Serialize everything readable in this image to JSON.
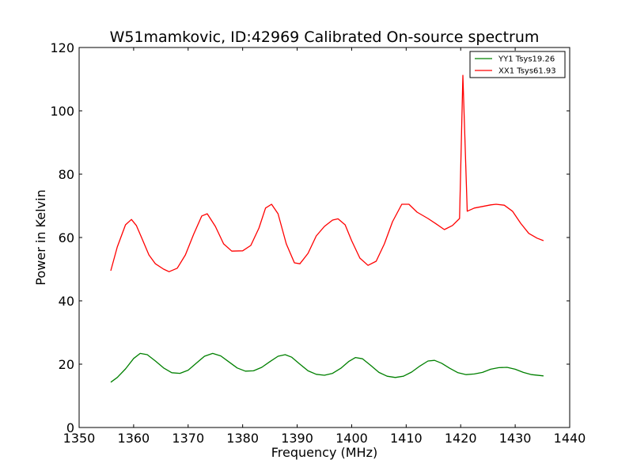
{
  "chart_data": {
    "type": "line",
    "title": "W51mamkovic, ID:42969 Calibrated On-source spectrum",
    "xlabel": "Frequency (MHz)",
    "ylabel": "Power in Kelvin",
    "xlim": [
      1350,
      1440
    ],
    "ylim": [
      0,
      120
    ],
    "xticks": [
      1350,
      1360,
      1370,
      1380,
      1390,
      1400,
      1410,
      1420,
      1430,
      1440
    ],
    "yticks": [
      0,
      20,
      40,
      60,
      80,
      100,
      120
    ],
    "grid": false,
    "legend_position": "top-right",
    "series": [
      {
        "name": "YY1 Tsys19.26",
        "color": "#008000",
        "x": [
          1355.8,
          1357,
          1358.5,
          1360,
          1361.2,
          1362.5,
          1364,
          1365.5,
          1367,
          1368.5,
          1370,
          1371.5,
          1373,
          1374.5,
          1376,
          1377.5,
          1379,
          1380.5,
          1382,
          1383.5,
          1385,
          1386.5,
          1387.8,
          1389,
          1390.5,
          1392,
          1393.5,
          1395,
          1396.5,
          1398,
          1399.5,
          1400.7,
          1402,
          1403.5,
          1405,
          1406.5,
          1408,
          1409.5,
          1411,
          1412.5,
          1414,
          1415.2,
          1416.5,
          1418,
          1419.5,
          1421,
          1422.5,
          1424,
          1425.5,
          1427,
          1428.5,
          1430,
          1431.5,
          1433,
          1435.2
        ],
        "y": [
          14.3,
          15.8,
          18.5,
          21.8,
          23.4,
          23.0,
          21.0,
          18.8,
          17.3,
          17.1,
          18.1,
          20.3,
          22.5,
          23.4,
          22.6,
          20.7,
          18.8,
          17.8,
          17.9,
          19.0,
          20.8,
          22.5,
          23.0,
          22.2,
          20.0,
          17.9,
          16.8,
          16.5,
          17.1,
          18.7,
          20.9,
          22.1,
          21.7,
          19.6,
          17.4,
          16.2,
          15.8,
          16.2,
          17.5,
          19.4,
          21.0,
          21.2,
          20.3,
          18.7,
          17.3,
          16.7,
          16.9,
          17.4,
          18.4,
          18.9,
          19.0,
          18.4,
          17.4,
          16.7,
          16.3
        ]
      },
      {
        "name": "XX1 Tsys61.93",
        "color": "#ff0000",
        "x": [
          1355.8,
          1357,
          1358.5,
          1359.6,
          1360.5,
          1361.5,
          1362.8,
          1364,
          1365.5,
          1366.5,
          1368,
          1369.5,
          1371,
          1372.5,
          1373.5,
          1375,
          1376.5,
          1378,
          1380,
          1381.5,
          1383,
          1384.2,
          1385.3,
          1386.5,
          1388,
          1389.5,
          1390.5,
          1392,
          1393.5,
          1395,
          1396.5,
          1397.5,
          1398.8,
          1400,
          1401.5,
          1403,
          1404.5,
          1406,
          1407.5,
          1409.2,
          1410.5,
          1412,
          1414,
          1415.5,
          1417,
          1418.5,
          1419.8,
          1420.4,
          1421.2,
          1422.5,
          1424,
          1425.5,
          1426.5,
          1428,
          1429.5,
          1431,
          1432.5,
          1434,
          1435.2
        ],
        "y": [
          49.5,
          57.0,
          64.0,
          65.7,
          63.8,
          59.8,
          54.5,
          51.7,
          50.0,
          49.2,
          50.3,
          54.5,
          61.0,
          66.8,
          67.5,
          63.5,
          58.0,
          55.7,
          55.8,
          57.5,
          63.0,
          69.3,
          70.5,
          67.5,
          58.0,
          52.0,
          51.7,
          55.0,
          60.5,
          63.5,
          65.5,
          65.9,
          64.0,
          59.0,
          53.5,
          51.2,
          52.5,
          58.0,
          65.0,
          70.5,
          70.5,
          68.0,
          66.0,
          64.3,
          62.5,
          63.8,
          66.0,
          111.2,
          68.3,
          69.3,
          69.8,
          70.3,
          70.5,
          70.2,
          68.3,
          64.5,
          61.3,
          59.8,
          59.0
        ]
      }
    ]
  }
}
